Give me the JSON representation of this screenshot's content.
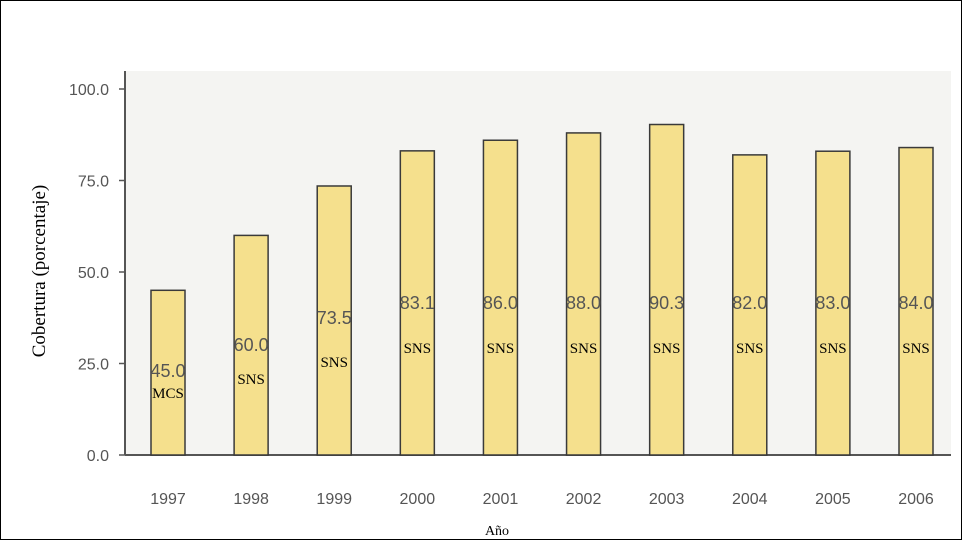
{
  "chart_data": {
    "type": "bar",
    "categories": [
      "1997",
      "1998",
      "1999",
      "2000",
      "2001",
      "2002",
      "2003",
      "2004",
      "2005",
      "2006"
    ],
    "values": [
      45.0,
      60.0,
      73.5,
      83.1,
      86.0,
      88.0,
      90.3,
      82.0,
      83.0,
      84.0
    ],
    "value_labels": [
      "45.0",
      "60.0",
      "73.5",
      "83.1",
      "86.0",
      "88.0",
      "90.3",
      "82.0",
      "83.0",
      "84.0"
    ],
    "bar_tags": [
      "MCS",
      "SNS",
      "SNS",
      "SNS",
      "SNS",
      "SNS",
      "SNS",
      "SNS",
      "SNS",
      "SNS"
    ],
    "title": "",
    "xlabel": "Año",
    "ylabel": "Cobertura (porcentaje)",
    "ylim": [
      0,
      100
    ],
    "yticks": [
      "0.0",
      "25.0",
      "50.0",
      "75.0",
      "100.0"
    ],
    "grid": false,
    "colors": {
      "bar_fill": "#f5e08d",
      "bar_stroke": "#3a3a3a",
      "plot_bg": "#f4f4f2",
      "axis": "#555555"
    }
  }
}
